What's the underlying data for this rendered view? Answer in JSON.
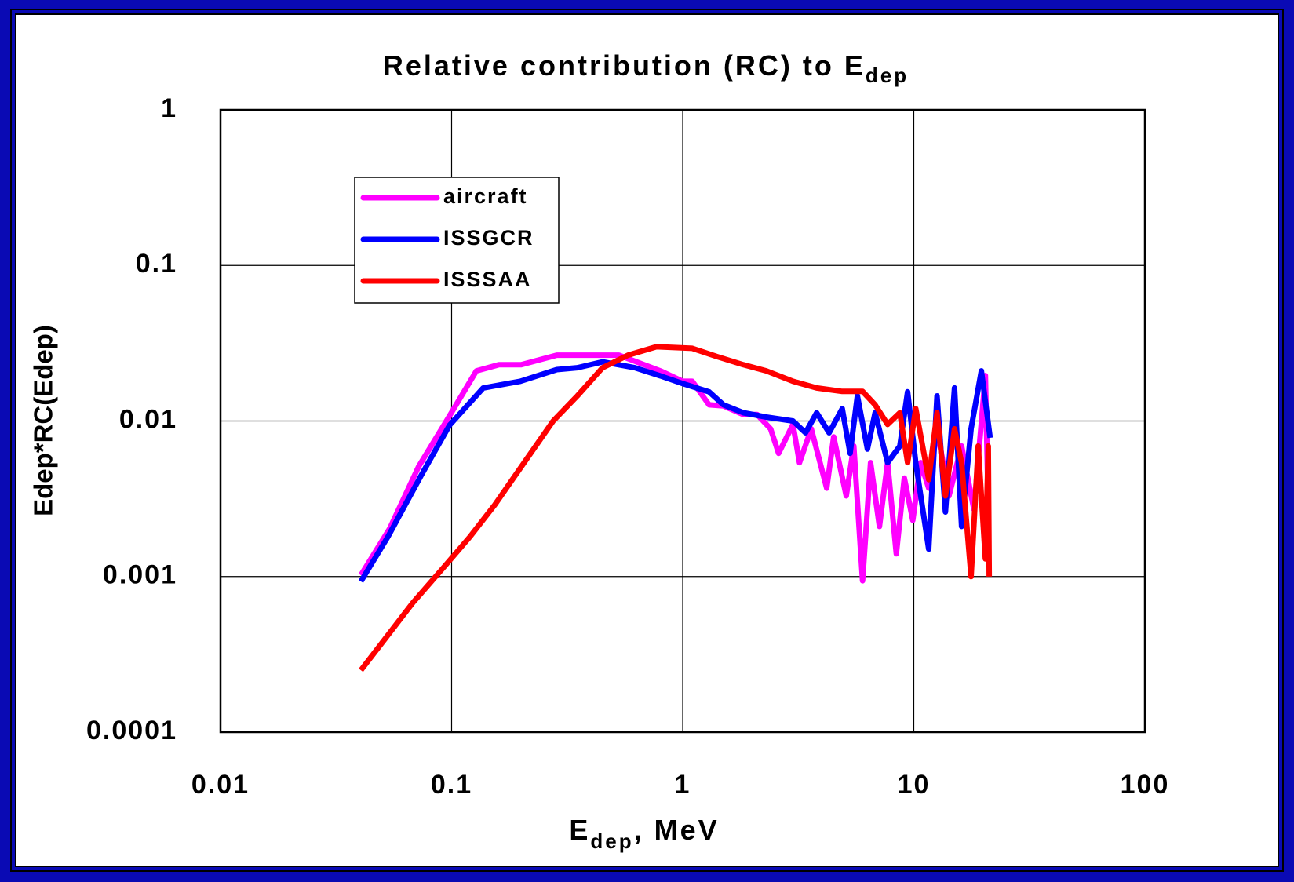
{
  "chart_data": {
    "type": "line",
    "title": "Relative contribution (RC) to E",
    "title_subscript": "dep",
    "xlabel": "E",
    "xlabel_subscript": "dep",
    "xlabel_suffix": ", MeV",
    "ylabel": "Edep*RC(Edep)",
    "xscale": "log",
    "yscale": "log",
    "xlim": [
      0.01,
      100
    ],
    "ylim": [
      0.0001,
      1
    ],
    "xticks": [
      0.01,
      0.1,
      1,
      10,
      100
    ],
    "yticks": [
      0.0001,
      0.001,
      0.01,
      0.1,
      1
    ],
    "grid": true,
    "legend": "upper left",
    "series": [
      {
        "name": "aircraft",
        "color": "#ff00ff",
        "x": [
          0.0405,
          0.054,
          0.072,
          0.095,
          0.128,
          0.16,
          0.2,
          0.285,
          0.53,
          0.8,
          1.0,
          1.1,
          1.3,
          1.5,
          1.83,
          2.1,
          2.4,
          2.6,
          3.0,
          3.2,
          3.6,
          4.2,
          4.5,
          5.1,
          5.5,
          6.0,
          6.5,
          7.1,
          7.7,
          8.4,
          9.1,
          9.9,
          10.7,
          11.6,
          12.6,
          14.2,
          16.1,
          18.2,
          20.4,
          21
        ],
        "values": [
          0.00102,
          0.00204,
          0.0051,
          0.01,
          0.021,
          0.023,
          0.023,
          0.0265,
          0.0265,
          0.021,
          0.018,
          0.018,
          0.0127,
          0.0125,
          0.011,
          0.011,
          0.0089,
          0.0062,
          0.0095,
          0.0054,
          0.0089,
          0.0037,
          0.0079,
          0.0033,
          0.0069,
          0.00094,
          0.0054,
          0.0021,
          0.0054,
          0.0014,
          0.0043,
          0.0023,
          0.0054,
          0.0037,
          0.0089,
          0.0033,
          0.0069,
          0.0027,
          0.0196,
          0.0027
        ]
      },
      {
        "name": "ISSGCR",
        "color": "#0000ff",
        "x": [
          0.0405,
          0.053,
          0.074,
          0.098,
          0.137,
          0.198,
          0.285,
          0.35,
          0.45,
          0.62,
          0.8,
          1.0,
          1.3,
          1.5,
          1.83,
          2.3,
          3.0,
          3.4,
          3.8,
          4.3,
          4.9,
          5.3,
          5.7,
          6.3,
          6.8,
          7.7,
          8.7,
          9.4,
          10.2,
          11.6,
          12.6,
          13.7,
          15.0,
          16.1,
          17.7,
          19.6,
          21.4
        ],
        "values": [
          0.00093,
          0.0018,
          0.0045,
          0.0094,
          0.0163,
          0.018,
          0.0214,
          0.022,
          0.024,
          0.022,
          0.0195,
          0.0174,
          0.0154,
          0.0127,
          0.0113,
          0.0106,
          0.01,
          0.0084,
          0.0113,
          0.0084,
          0.012,
          0.0062,
          0.0145,
          0.0066,
          0.0113,
          0.0054,
          0.0069,
          0.0154,
          0.0054,
          0.0015,
          0.0145,
          0.0026,
          0.0163,
          0.0021,
          0.0089,
          0.021,
          0.0078
        ]
      },
      {
        "name": "ISSSAA",
        "color": "#ff0000",
        "x": [
          0.0405,
          0.068,
          0.094,
          0.12,
          0.154,
          0.206,
          0.275,
          0.35,
          0.45,
          0.58,
          0.77,
          1.1,
          1.4,
          1.83,
          2.3,
          3.0,
          3.8,
          4.9,
          6.0,
          6.8,
          7.7,
          8.7,
          9.4,
          10.2,
          11.6,
          12.6,
          13.7,
          15.0,
          16.1,
          17.7,
          19.0,
          20.4,
          21,
          21.2
        ],
        "values": [
          0.00025,
          0.00068,
          0.00118,
          0.0018,
          0.0029,
          0.0054,
          0.01,
          0.0145,
          0.022,
          0.0265,
          0.03,
          0.0293,
          0.026,
          0.023,
          0.021,
          0.018,
          0.0163,
          0.0155,
          0.0155,
          0.0127,
          0.0095,
          0.0113,
          0.0054,
          0.012,
          0.0042,
          0.0113,
          0.0033,
          0.0089,
          0.0054,
          0.001,
          0.0069,
          0.0013,
          0.0069,
          0.001
        ]
      }
    ]
  }
}
